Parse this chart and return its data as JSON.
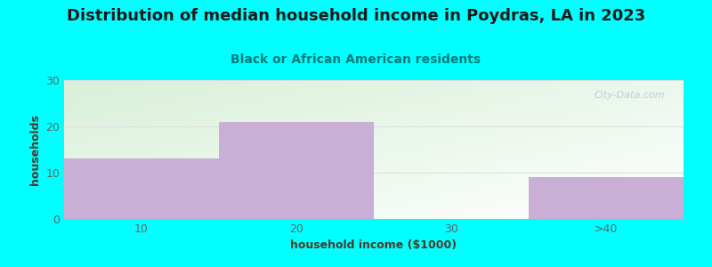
{
  "title": "Distribution of median household income in Poydras, LA in 2023",
  "subtitle": "Black or African American residents",
  "xlabel": "household income ($1000)",
  "ylabel": "households",
  "categories": [
    "10",
    "20",
    "30",
    ">40"
  ],
  "values": [
    13,
    21,
    0,
    9
  ],
  "bar_color": "#c9aed6",
  "background_color": "#00ffff",
  "plot_bg_left": "#d8f0d8",
  "plot_bg_right": "#f8fff8",
  "title_color": "#1a1a1a",
  "subtitle_color": "#007a7a",
  "axis_label_color": "#4a3a2a",
  "tick_color": "#666666",
  "grid_color": "#dddddd",
  "ylim": [
    0,
    30
  ],
  "yticks": [
    0,
    10,
    20,
    30
  ],
  "title_fontsize": 13,
  "subtitle_fontsize": 10,
  "label_fontsize": 9,
  "watermark": "City-Data.com"
}
